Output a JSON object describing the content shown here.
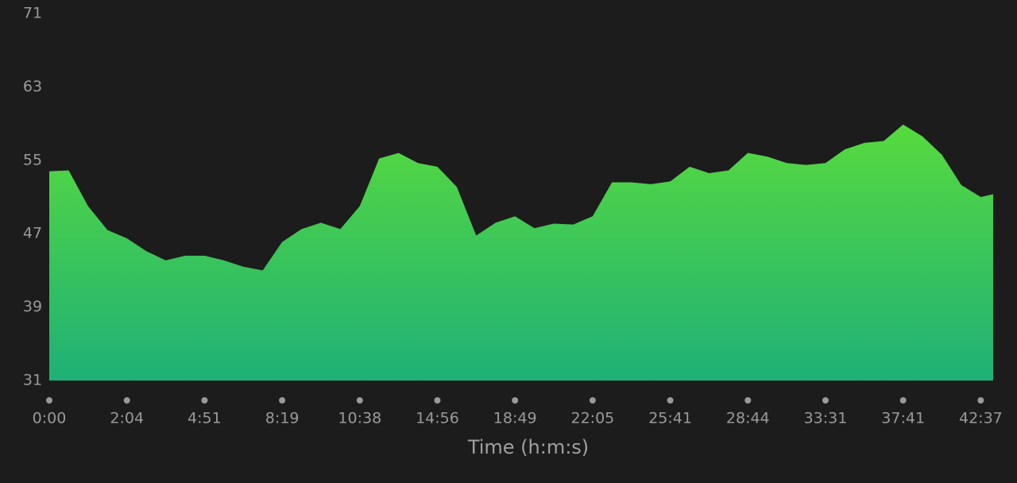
{
  "chart_data": {
    "type": "area",
    "x_label": "Time (h:m:s)",
    "x": [
      0,
      0.25,
      0.5,
      0.75,
      1,
      1.25,
      1.5,
      1.75,
      2,
      2.25,
      2.5,
      2.75,
      3,
      3.25,
      3.5,
      3.75,
      4,
      4.25,
      4.5,
      4.75,
      5,
      5.25,
      5.5,
      5.75,
      6,
      6.25,
      6.5,
      6.75,
      7,
      7.25,
      7.5,
      7.75,
      8,
      8.25,
      8.5,
      8.75,
      9,
      9.25,
      9.5,
      9.75,
      10,
      10.25,
      10.5,
      10.75,
      11,
      11.25,
      11.5,
      11.75,
      12,
      12.16
    ],
    "values": [
      53.8,
      53.9,
      50.0,
      47.4,
      46.5,
      45.1,
      44.1,
      44.6,
      44.6,
      44.1,
      43.4,
      43.0,
      46.1,
      47.5,
      48.2,
      47.5,
      50.0,
      55.2,
      55.8,
      54.7,
      54.3,
      52.1,
      46.8,
      48.2,
      48.9,
      47.6,
      48.1,
      48.0,
      48.9,
      52.6,
      52.6,
      52.4,
      52.7,
      54.3,
      53.6,
      53.9,
      55.8,
      55.4,
      54.7,
      54.5,
      54.7,
      56.2,
      56.9,
      57.1,
      58.9,
      57.6,
      55.6,
      52.3,
      51.0,
      51.3
    ],
    "gradient": [
      "#57da3e",
      "#1eb077"
    ],
    "xlim": [
      0,
      12.16
    ],
    "xticks": [
      {
        "value": 0,
        "label": "0:00"
      },
      {
        "value": 1,
        "label": "2:04"
      },
      {
        "value": 2,
        "label": "4:51"
      },
      {
        "value": 3,
        "label": "8:19"
      },
      {
        "value": 4,
        "label": "10:38"
      },
      {
        "value": 5,
        "label": "14:56"
      },
      {
        "value": 6,
        "label": "18:49"
      },
      {
        "value": 7,
        "label": "22:05"
      },
      {
        "value": 8,
        "label": "25:41"
      },
      {
        "value": 9,
        "label": "28:44"
      },
      {
        "value": 10,
        "label": "33:31"
      },
      {
        "value": 11,
        "label": "37:41"
      },
      {
        "value": 12,
        "label": "42:37"
      }
    ],
    "ylim": [
      31,
      71
    ],
    "yticks": [
      71,
      63,
      55,
      47,
      39,
      31
    ],
    "grid": false
  }
}
